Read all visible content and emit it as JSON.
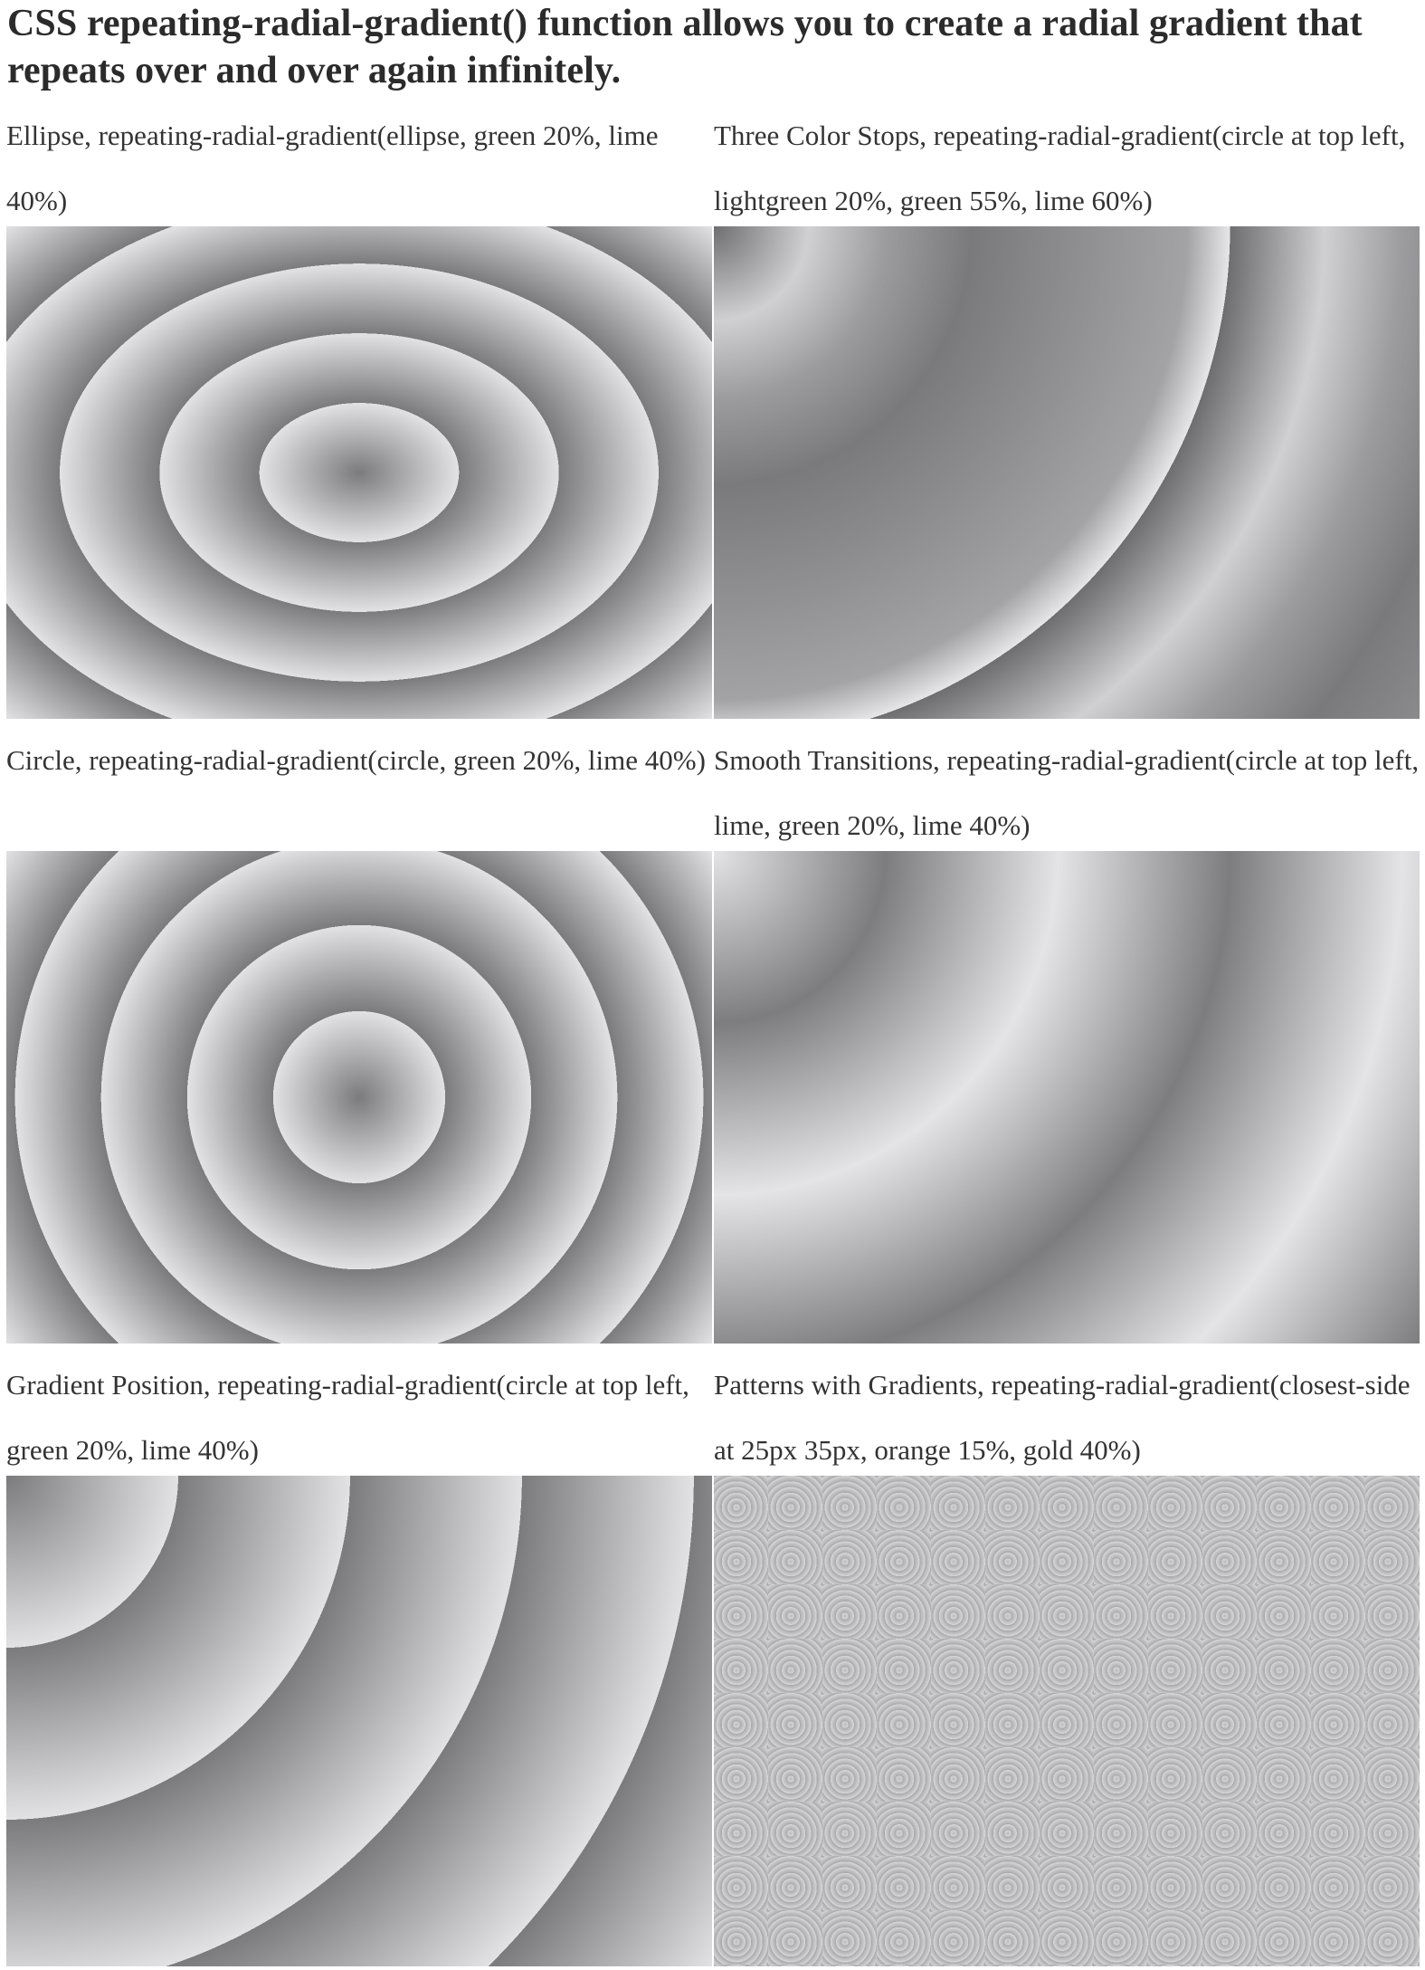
{
  "page": {
    "title": "CSS repeating-radial-gradient() function allows you to create a radial gradient that repeats over and over again infinitely."
  },
  "examples": [
    {
      "caption": "Ellipse, repeating-radial-gradient(ellipse, green 20%, lime 40%)"
    },
    {
      "caption": "Three Color Stops, repeating-radial-gradient(circle at top left, lightgreen 20%, green 55%, lime 60%)"
    },
    {
      "caption": "Circle, repeating-radial-gradient(circle, green 20%, lime 40%)"
    },
    {
      "caption": "Smooth Transitions, repeating-radial-gradient(circle at top left, lime, green 20%, lime 40%)"
    },
    {
      "caption": "Gradient Position, repeating-radial-gradient(circle at top left, green 20%, lime 40%)"
    },
    {
      "caption": "Patterns with Gradients, repeating-radial-gradient(closest-side at 25px 35px, orange 15%, gold 40%)"
    }
  ],
  "colors": {
    "text": "#2b2b2b",
    "background": "#ffffff",
    "gradient_dark": "#7b7b7e",
    "gradient_light": "#e2e2e4"
  }
}
